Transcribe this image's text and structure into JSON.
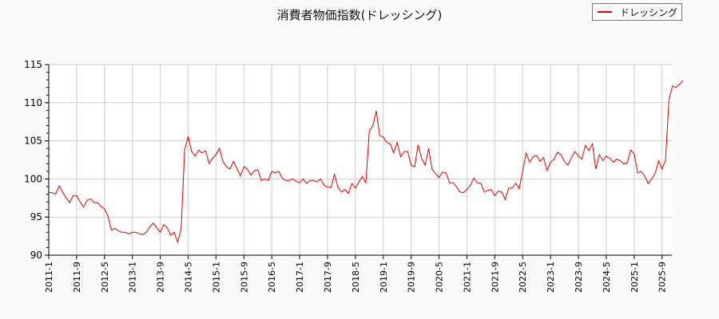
{
  "chart_data": {
    "type": "line",
    "title": "消費者物価指数(ドレッシング)",
    "xlabel": "",
    "ylabel": "",
    "ylim": [
      90,
      115
    ],
    "yticks": [
      90,
      95,
      100,
      105,
      110,
      115
    ],
    "xtick_labels": [
      "2011-1",
      "2011-9",
      "2012-5",
      "2013-1",
      "2013-9",
      "2014-5",
      "2015-1",
      "2015-9",
      "2016-5",
      "2017-1",
      "2017-9",
      "2018-5",
      "2019-1",
      "2019-9",
      "2020-5",
      "2021-1",
      "2021-9",
      "2022-5",
      "2023-1",
      "2023-9",
      "2024-5",
      "2025-1",
      "2025-9"
    ],
    "grid": true,
    "legend_position": "upper right",
    "start": "2011-1",
    "frequency": "monthly",
    "series": [
      {
        "name": "ドレッシング",
        "color": "#e00000",
        "values": [
          98.2,
          98.2,
          98.0,
          99.1,
          98.3,
          97.5,
          96.9,
          97.8,
          97.8,
          97.0,
          96.3,
          97.2,
          97.4,
          96.9,
          96.9,
          96.4,
          96.1,
          95.1,
          93.3,
          93.5,
          93.2,
          93.0,
          93.0,
          92.8,
          93.0,
          93.0,
          92.8,
          92.7,
          93.0,
          93.7,
          94.2,
          93.6,
          93.0,
          94.0,
          93.6,
          92.6,
          93.0,
          91.7,
          93.5,
          103.8,
          105.6,
          103.6,
          103.0,
          103.8,
          103.4,
          103.7,
          102.0,
          102.7,
          103.2,
          104.0,
          102.3,
          101.6,
          101.3,
          102.3,
          101.4,
          100.4,
          101.6,
          101.3,
          100.5,
          101.1,
          101.2,
          99.8,
          100.0,
          99.8,
          101.0,
          100.8,
          101.0,
          100.1,
          99.8,
          99.8,
          100.0,
          99.7,
          99.5,
          100.0,
          99.4,
          99.8,
          99.8,
          99.6,
          100.0,
          99.2,
          98.9,
          98.9,
          100.6,
          98.9,
          98.3,
          98.6,
          98.1,
          99.4,
          98.8,
          99.6,
          100.3,
          99.5,
          106.3,
          107.0,
          108.9,
          105.7,
          105.5,
          104.8,
          104.6,
          103.4,
          104.8,
          102.9,
          103.6,
          103.6,
          101.8,
          101.6,
          104.5,
          102.7,
          101.8,
          104.0,
          101.3,
          100.7,
          100.2,
          100.9,
          100.8,
          99.5,
          99.5,
          99.0,
          98.3,
          98.2,
          98.6,
          99.2,
          100.1,
          99.5,
          99.4,
          98.3,
          98.5,
          98.6,
          97.8,
          98.4,
          98.3,
          97.3,
          98.8,
          98.8,
          99.4,
          98.7,
          101.0,
          103.4,
          102.2,
          102.9,
          103.1,
          102.3,
          102.8,
          101.1,
          102.2,
          102.6,
          103.5,
          103.2,
          102.3,
          101.8,
          102.8,
          103.6,
          103.0,
          102.6,
          104.4,
          103.7,
          104.6,
          101.3,
          103.2,
          102.4,
          103.0,
          102.7,
          102.2,
          102.6,
          102.4,
          102.0,
          102.1,
          103.8,
          103.3,
          100.8,
          101.0,
          100.4,
          99.4,
          100.0,
          100.7,
          102.4,
          101.3,
          102.5,
          110.4,
          112.2,
          112.0,
          112.4,
          112.9
        ]
      }
    ]
  },
  "legend": {
    "label": "ドレッシング"
  }
}
